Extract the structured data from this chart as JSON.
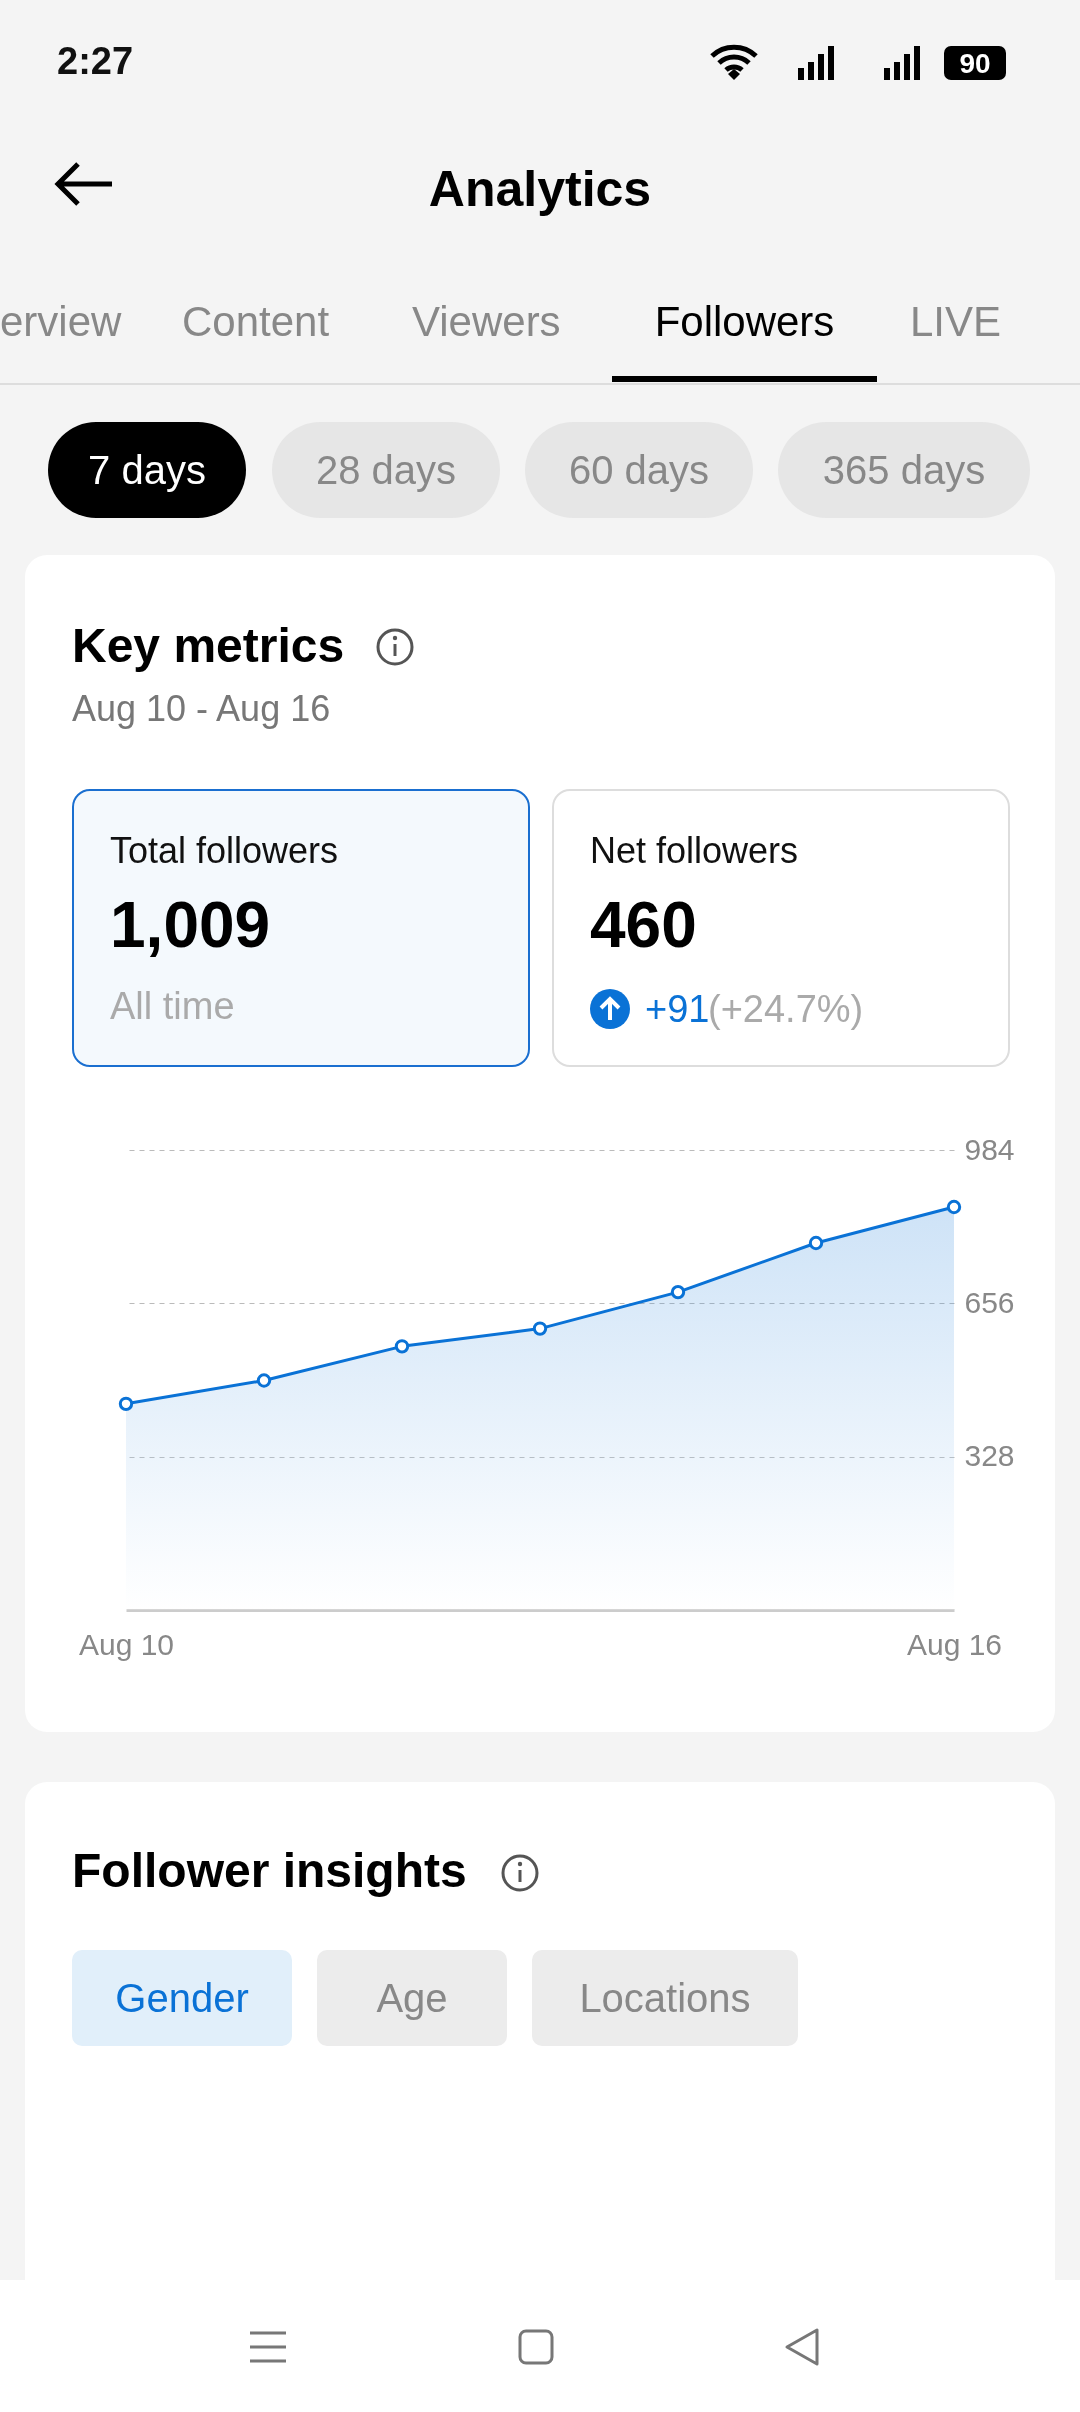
{
  "chart_data": {
    "type": "area",
    "title": "Key metrics",
    "subtitle": "Aug 10 - Aug 16",
    "categories": [
      "Aug 10",
      null,
      null,
      null,
      null,
      null,
      "Aug 16"
    ],
    "series": [
      {
        "color": "#0a72d6",
        "values": [
          441,
          491,
          564,
          602,
          680,
          785,
          862
        ]
      }
    ],
    "ylim": [
      0,
      984
    ],
    "yticks": [
      328,
      656,
      984
    ],
    "grid": "y",
    "marker": "circle",
    "annotations": [
      "2:27",
      "90",
      "Analytics",
      "erview",
      "Content",
      "Viewers",
      "Followers",
      "LIVE",
      "7 days",
      "28 days",
      "60 days",
      "365 days",
      "Total followers",
      "1,009",
      "All time",
      "Net followers",
      "460",
      "+91",
      "(+24.7%)",
      "Follower insights",
      "Gender",
      "Age",
      "Locations"
    ]
  }
}
